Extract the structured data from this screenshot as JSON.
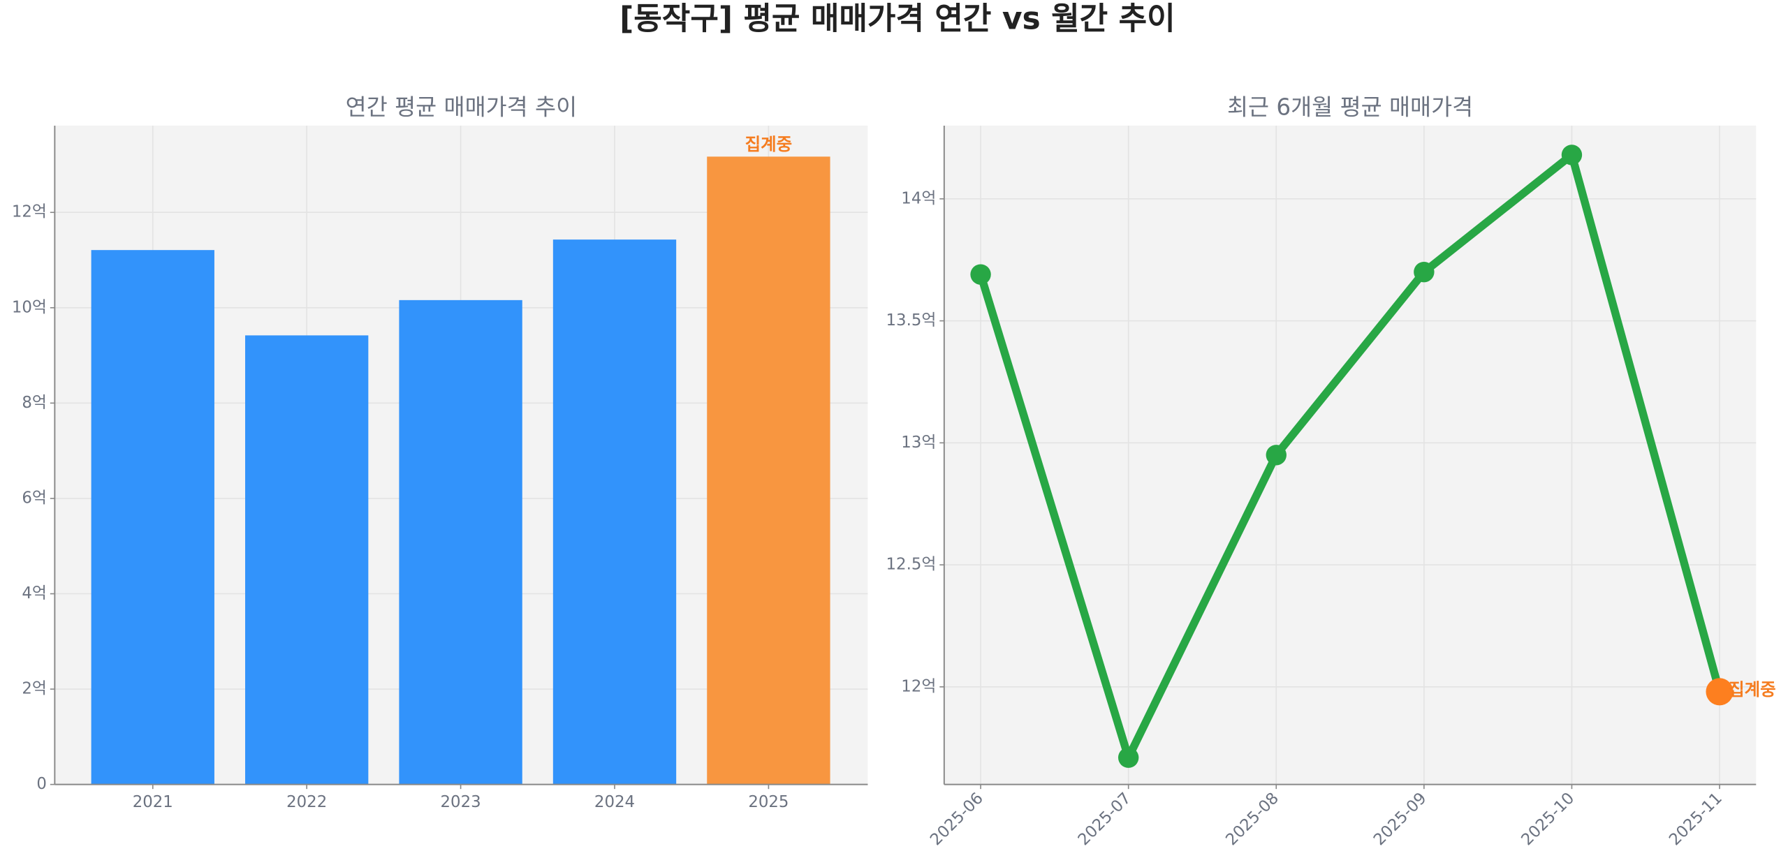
{
  "title": "[동작구] 평균 매매가격 연간 vs 월간 추이",
  "chart_data": [
    {
      "type": "bar",
      "title": "연간 평균 매매가격 추이",
      "categories": [
        "2021",
        "2022",
        "2023",
        "2024",
        "2025"
      ],
      "values": [
        11.21,
        9.42,
        10.16,
        11.43,
        13.17
      ],
      "colors": [
        "#3293fb",
        "#3293fb",
        "#3293fb",
        "#3293fb",
        "#f89640"
      ],
      "annotation": "집계중",
      "annotation_color": "#f57c1f",
      "ylim": [
        0,
        13.82
      ],
      "yticks": [
        0,
        {
          "value": 2,
          "label": "2억"
        },
        {
          "value": 4,
          "label": "4억"
        },
        {
          "value": 6,
          "label": "6억"
        },
        {
          "value": 8,
          "label": "8억"
        },
        {
          "value": 10,
          "label": "10억"
        },
        {
          "value": 12,
          "label": "12억"
        }
      ],
      "grid": true
    },
    {
      "type": "line",
      "title": "최근 6개월 평균 매매가격",
      "categories": [
        "2025-06",
        "2025-07",
        "2025-08",
        "2025-09",
        "2025-10",
        "2025-11"
      ],
      "values": [
        13.69,
        11.71,
        12.95,
        13.7,
        14.18,
        11.98
      ],
      "color": "#28a745",
      "highlight_color": "#fd7f1f",
      "annotation": "집계중",
      "annotation_color": "#f57c1f",
      "ylim": [
        11.6,
        14.3
      ],
      "yticks": [
        {
          "value": 12,
          "label": "12억"
        },
        {
          "value": 12.5,
          "label": "12.5억"
        },
        {
          "value": 13,
          "label": "13억"
        },
        {
          "value": 13.5,
          "label": "13.5억"
        },
        {
          "value": 14,
          "label": "14억"
        }
      ],
      "grid": true
    }
  ]
}
